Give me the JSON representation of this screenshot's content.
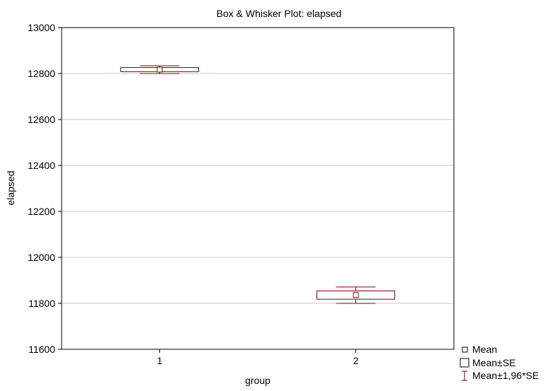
{
  "chart_data": {
    "type": "box",
    "title": "Box & Whisker Plot:  elapsed",
    "xlabel": "group",
    "ylabel": "elapsed",
    "categories": [
      "1",
      "2"
    ],
    "ylim": [
      11600,
      13000
    ],
    "yticks": [
      "11600",
      "11800",
      "12000",
      "12200",
      "12400",
      "12600",
      "12800",
      "13000"
    ],
    "grid": true,
    "legend_position": "bottom-right",
    "groups": [
      {
        "category": "1",
        "mean": 12817,
        "se_low": 12808,
        "se_high": 12826,
        "ci_low": 12800,
        "ci_high": 12834
      },
      {
        "category": "2",
        "mean": 11836,
        "se_low": 11818,
        "se_high": 11854,
        "ci_low": 11800,
        "ci_high": 11871
      }
    ],
    "legend": [
      {
        "symbol": "mean",
        "label": "Mean"
      },
      {
        "symbol": "box",
        "label": "Mean±SE"
      },
      {
        "symbol": "whisker",
        "label": "Mean±1,96*SE"
      }
    ],
    "colors": {
      "series": "#800000",
      "grid": "#c8c8c8",
      "frame": "#000000"
    }
  }
}
